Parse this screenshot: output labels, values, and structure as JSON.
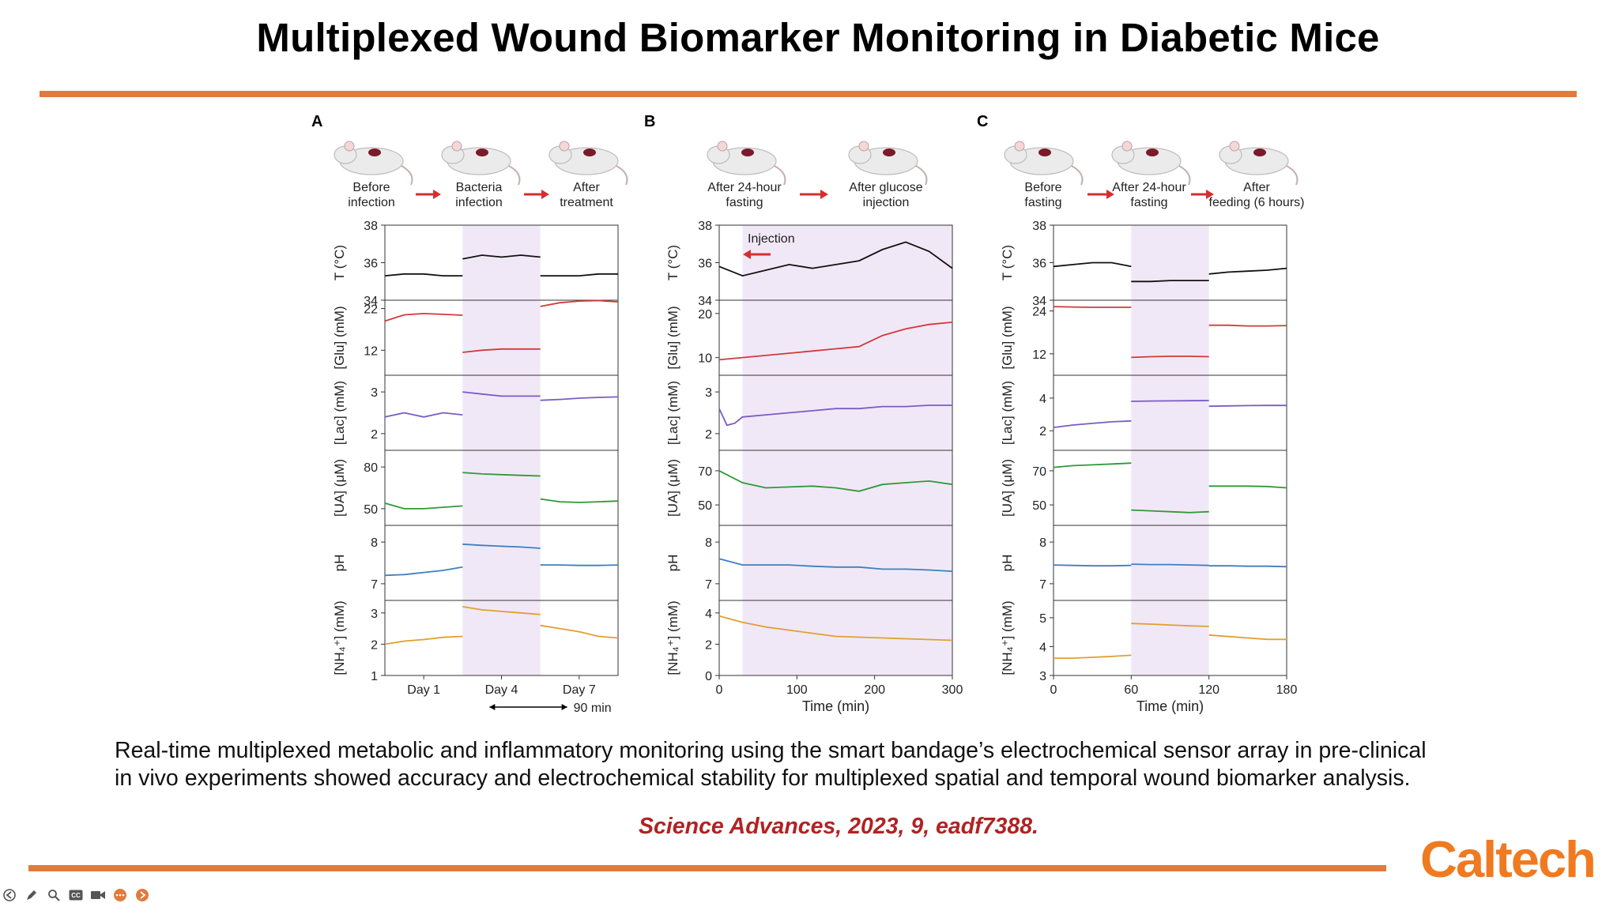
{
  "slide": {
    "title": "Multiplexed Wound Biomarker Monitoring in Diabetic Mice",
    "caption_line1": "Real-time multiplexed metabolic and inflammatory monitoring using the smart bandage’s electrochemical sensor array in pre-clinical",
    "caption_line2": "in vivo experiments showed accuracy and electrochemical stability for multiplexed spatial and temporal wound biomarker analysis.",
    "citation": "Science Advances, 2023, 9, eadf7388.",
    "logo": "Caltech",
    "accent_color": "#e07b3c",
    "citation_color": "#b22222"
  },
  "toolbar": {
    "buttons": [
      {
        "name": "back-button",
        "icon": "back-arrow-icon"
      },
      {
        "name": "pen-button",
        "icon": "pen-icon"
      },
      {
        "name": "zoom-button",
        "icon": "magnifier-icon"
      },
      {
        "name": "captions-button",
        "icon": "cc-icon"
      },
      {
        "name": "camera-button",
        "icon": "video-camera-icon"
      },
      {
        "name": "more-button",
        "icon": "more-icon"
      },
      {
        "name": "next-button",
        "icon": "forward-arrow-icon"
      }
    ]
  },
  "chart_data": [
    {
      "panel": "A",
      "type": "line",
      "stages": [
        "Before\ninfection",
        "Bacteria\ninfection",
        "After\ntreatment"
      ],
      "x_ticks": [
        "Day 1",
        "Day 4",
        "Day 7"
      ],
      "scale_note": "90 min",
      "shaded_segment": 1,
      "rows": [
        {
          "ylabel": "T (°C)",
          "ticks": [
            34,
            36,
            38
          ],
          "ylim": [
            34,
            38
          ],
          "segments": [
            [
              35.3,
              35.4,
              35.4,
              35.3,
              35.3
            ],
            [
              36.2,
              36.4,
              36.3,
              36.4,
              36.3
            ],
            [
              35.3,
              35.3,
              35.3,
              35.4,
              35.4
            ]
          ]
        },
        {
          "ylabel": "[Glu] (mM)",
          "ticks": [
            12,
            22
          ],
          "ylim": [
            6,
            24
          ],
          "segments": [
            [
              19,
              20.5,
              20.8,
              20.6,
              20.4
            ],
            [
              11.5,
              12,
              12.3,
              12.3,
              12.3
            ],
            [
              22.5,
              23.4,
              23.8,
              23.9,
              23.6
            ]
          ]
        },
        {
          "ylabel": "[Lac] (mM)",
          "ticks": [
            2,
            3
          ],
          "ylim": [
            1.6,
            3.4
          ],
          "segments": [
            [
              2.4,
              2.5,
              2.4,
              2.5,
              2.45
            ],
            [
              3.0,
              2.95,
              2.9,
              2.9,
              2.9
            ],
            [
              2.8,
              2.82,
              2.85,
              2.87,
              2.88
            ]
          ]
        },
        {
          "ylabel": "[UA] (μM)",
          "ticks": [
            50,
            80
          ],
          "ylim": [
            38,
            92
          ],
          "segments": [
            [
              54,
              50,
              50,
              51,
              52
            ],
            [
              76,
              75,
              74.5,
              74,
              73.5
            ],
            [
              57,
              55,
              54.5,
              55,
              55.5
            ]
          ]
        },
        {
          "ylabel": "pH",
          "ticks": [
            7,
            8
          ],
          "ylim": [
            6.6,
            8.4
          ],
          "segments": [
            [
              7.2,
              7.22,
              7.27,
              7.32,
              7.4
            ],
            [
              7.95,
              7.92,
              7.9,
              7.88,
              7.85
            ],
            [
              7.45,
              7.45,
              7.44,
              7.44,
              7.45
            ]
          ]
        },
        {
          "ylabel": "[NH₄⁺] (mM)",
          "ticks": [
            1,
            2,
            3
          ],
          "ylim": [
            1,
            3.4
          ],
          "segments": [
            [
              2.0,
              2.1,
              2.15,
              2.22,
              2.25
            ],
            [
              3.2,
              3.1,
              3.05,
              3.0,
              2.95
            ],
            [
              2.6,
              2.5,
              2.4,
              2.25,
              2.2
            ]
          ]
        }
      ]
    },
    {
      "panel": "B",
      "type": "line",
      "stages": [
        "After 24-hour\nfasting",
        "After glucose\ninjection"
      ],
      "x_ticks": [
        "0",
        "100",
        "200",
        "300"
      ],
      "xlim": [
        0,
        300
      ],
      "xlabel": "Time (min)",
      "annotation": "Injection",
      "shaded_from": 30,
      "rows": [
        {
          "ylabel": "T (°C)",
          "ticks": [
            34,
            36,
            38
          ],
          "ylim": [
            34,
            38
          ],
          "x": [
            0,
            30,
            60,
            90,
            120,
            150,
            180,
            210,
            240,
            270,
            300
          ],
          "values": [
            35.8,
            35.3,
            35.6,
            35.9,
            35.7,
            35.9,
            36.1,
            36.7,
            37.1,
            36.6,
            35.7
          ]
        },
        {
          "ylabel": "[Glu] (mM)",
          "ticks": [
            10,
            20
          ],
          "ylim": [
            6,
            23
          ],
          "x": [
            0,
            30,
            60,
            90,
            120,
            150,
            180,
            210,
            240,
            270,
            300
          ],
          "values": [
            9.5,
            10,
            10.5,
            11,
            11.5,
            12,
            12.5,
            15,
            16.5,
            17.5,
            18
          ]
        },
        {
          "ylabel": "[Lac] (mM)",
          "ticks": [
            2,
            3
          ],
          "ylim": [
            1.6,
            3.4
          ],
          "x": [
            0,
            10,
            20,
            30,
            60,
            90,
            120,
            150,
            180,
            210,
            240,
            270,
            300
          ],
          "values": [
            2.6,
            2.2,
            2.25,
            2.4,
            2.45,
            2.5,
            2.55,
            2.6,
            2.6,
            2.65,
            2.65,
            2.68,
            2.68
          ]
        },
        {
          "ylabel": "[UA] (μM)",
          "ticks": [
            50,
            70
          ],
          "ylim": [
            38,
            82
          ],
          "x": [
            0,
            30,
            60,
            90,
            120,
            150,
            180,
            210,
            240,
            270,
            300
          ],
          "values": [
            70,
            63,
            60,
            60.5,
            61,
            60,
            58,
            62,
            63,
            64,
            62
          ]
        },
        {
          "ylabel": "pH",
          "ticks": [
            7,
            8
          ],
          "ylim": [
            6.6,
            8.4
          ],
          "x": [
            0,
            30,
            60,
            90,
            120,
            150,
            180,
            210,
            240,
            270,
            300
          ],
          "values": [
            7.6,
            7.45,
            7.45,
            7.45,
            7.42,
            7.4,
            7.4,
            7.35,
            7.35,
            7.33,
            7.3
          ]
        },
        {
          "ylabel": "[NH₄⁺] (mM)",
          "ticks": [
            0,
            2,
            4
          ],
          "ylim": [
            0,
            4.8
          ],
          "x": [
            0,
            30,
            60,
            90,
            120,
            150,
            180,
            210,
            240,
            270,
            300
          ],
          "values": [
            3.8,
            3.4,
            3.1,
            2.9,
            2.7,
            2.5,
            2.45,
            2.4,
            2.35,
            2.3,
            2.25
          ]
        }
      ]
    },
    {
      "panel": "C",
      "type": "line",
      "stages": [
        "Before\nfasting",
        "After 24-hour\nfasting",
        "After\nfeeding (6 hours)"
      ],
      "x_ticks": [
        "0",
        "60",
        "120",
        "180"
      ],
      "xlim": [
        0,
        180
      ],
      "xlabel": "Time (min)",
      "shaded_segment": 1,
      "rows": [
        {
          "ylabel": "T (°C)",
          "ticks": [
            34,
            36,
            38
          ],
          "ylim": [
            34,
            38
          ],
          "segments": [
            [
              35.8,
              35.9,
              36.0,
              36.0,
              35.8
            ],
            [
              35.0,
              35.0,
              35.05,
              35.05,
              35.05
            ],
            [
              35.4,
              35.5,
              35.55,
              35.6,
              35.7
            ]
          ]
        },
        {
          "ylabel": "[Glu] (mM)",
          "ticks": [
            12,
            24
          ],
          "ylim": [
            6,
            27
          ],
          "segments": [
            [
              25.2,
              25.1,
              25,
              25,
              25
            ],
            [
              11,
              11.2,
              11.3,
              11.3,
              11.2
            ],
            [
              20,
              20,
              19.8,
              19.8,
              19.9
            ]
          ]
        },
        {
          "ylabel": "[Lac] (mM)",
          "ticks": [
            2,
            4
          ],
          "ylim": [
            0.8,
            5.4
          ],
          "segments": [
            [
              2.2,
              2.35,
              2.45,
              2.55,
              2.6
            ],
            [
              3.8,
              3.82,
              3.83,
              3.84,
              3.85
            ],
            [
              3.5,
              3.52,
              3.54,
              3.55,
              3.55
            ]
          ]
        },
        {
          "ylabel": "[UA] (μM)",
          "ticks": [
            50,
            70
          ],
          "ylim": [
            38,
            82
          ],
          "segments": [
            [
              72,
              73,
              73.5,
              74,
              74.5
            ],
            [
              47,
              46.5,
              46,
              45.5,
              46
            ],
            [
              61,
              61,
              61,
              60.8,
              60
            ]
          ]
        },
        {
          "ylabel": "pH",
          "ticks": [
            7,
            8
          ],
          "ylim": [
            6.6,
            8.4
          ],
          "segments": [
            [
              7.45,
              7.44,
              7.43,
              7.43,
              7.44
            ],
            [
              7.47,
              7.46,
              7.46,
              7.45,
              7.44
            ],
            [
              7.43,
              7.43,
              7.42,
              7.42,
              7.41
            ]
          ]
        },
        {
          "ylabel": "[NH₄⁺] (mM)",
          "ticks": [
            3,
            4,
            5
          ],
          "ylim": [
            3,
            5.6
          ],
          "segments": [
            [
              3.6,
              3.6,
              3.63,
              3.66,
              3.7
            ],
            [
              4.8,
              4.78,
              4.75,
              4.72,
              4.7
            ],
            [
              4.4,
              4.35,
              4.3,
              4.25,
              4.25
            ]
          ]
        }
      ]
    }
  ]
}
